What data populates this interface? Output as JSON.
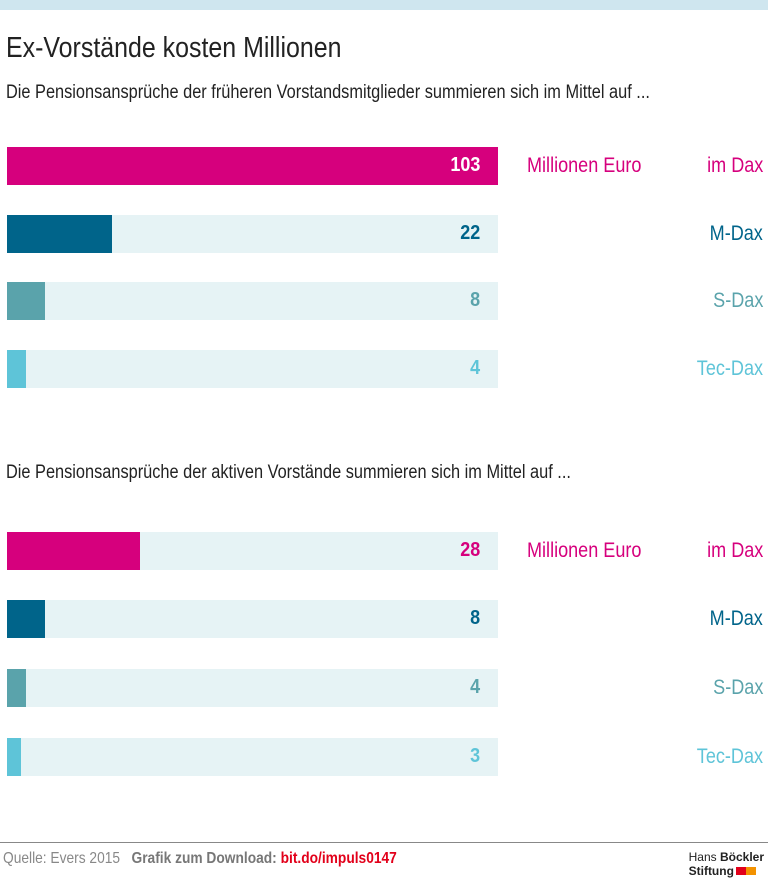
{
  "title": "Ex-Vorstände kosten Millionen",
  "footer": {
    "source": "Quelle: Evers 2015",
    "download_label": "Grafik zum Download:",
    "download_link": "bit.do/impuls0147",
    "logo": "Hans Böckler Stiftung"
  },
  "chart_data": [
    {
      "type": "bar",
      "orientation": "horizontal",
      "title": "Die Pensionsansprüche der früheren Vorstandsmitglieder summieren sich im Mittel auf ...",
      "unit": "Millionen Euro",
      "categories": [
        "im Dax",
        "M-Dax",
        "S-Dax",
        "Tec-Dax"
      ],
      "values": [
        103,
        22,
        8,
        4
      ],
      "xlim": [
        0,
        103
      ],
      "colors": [
        "#d6007d",
        "#00648a",
        "#5aa3ab",
        "#5ec4d8"
      ]
    },
    {
      "type": "bar",
      "orientation": "horizontal",
      "title": "Die Pensionsansprüche der aktiven Vorstände summieren sich im Mittel auf ...",
      "unit": "Millionen Euro",
      "categories": [
        "im Dax",
        "M-Dax",
        "S-Dax",
        "Tec-Dax"
      ],
      "values": [
        28,
        8,
        4,
        3
      ],
      "xlim": [
        0,
        103
      ],
      "colors": [
        "#d6007d",
        "#00648a",
        "#5aa3ab",
        "#5ec4d8"
      ]
    }
  ]
}
